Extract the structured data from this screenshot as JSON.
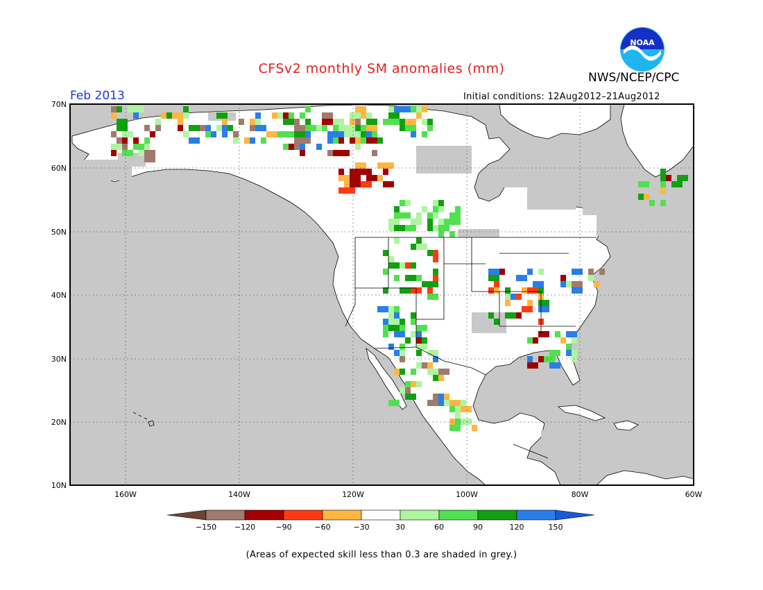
{
  "title": "CFSv2 monthly SM anomalies (mm)",
  "agency": "NWS/NCEP/CPC",
  "logo_text": "NOAA",
  "target_month": "Feb 2013",
  "initial_conditions": "Initial conditions: 12Aug2012–21Aug2012",
  "caption": "(Areas of expected skill less than 0.3 are shaded in grey.)",
  "axes": {
    "lat_labels": [
      "70N",
      "60N",
      "50N",
      "40N",
      "30N",
      "20N",
      "10N"
    ],
    "lat_values": [
      70,
      60,
      50,
      40,
      30,
      20,
      10
    ],
    "lon_labels": [
      "160W",
      "140W",
      "120W",
      "100W",
      "80W",
      "60W"
    ],
    "lon_values": [
      -160,
      -140,
      -120,
      -100,
      -80,
      -60
    ]
  },
  "legend": {
    "tick_labels": [
      "−150",
      "−120",
      "−90",
      "−60",
      "−30",
      "30",
      "60",
      "90",
      "120",
      "150"
    ],
    "colors": [
      "#6b4434",
      "#a07a6e",
      "#a00000",
      "#ff3a12",
      "#ffb642",
      "#ffffff",
      "#aef5a0",
      "#50e050",
      "#12a012",
      "#2a7ee8",
      "#1a5ad8"
    ]
  },
  "colors": {
    "grey_shading": "#c8c8c8",
    "land_white": "#ffffff",
    "title_red": "#e02020",
    "date_blue": "#1a36d6"
  }
}
